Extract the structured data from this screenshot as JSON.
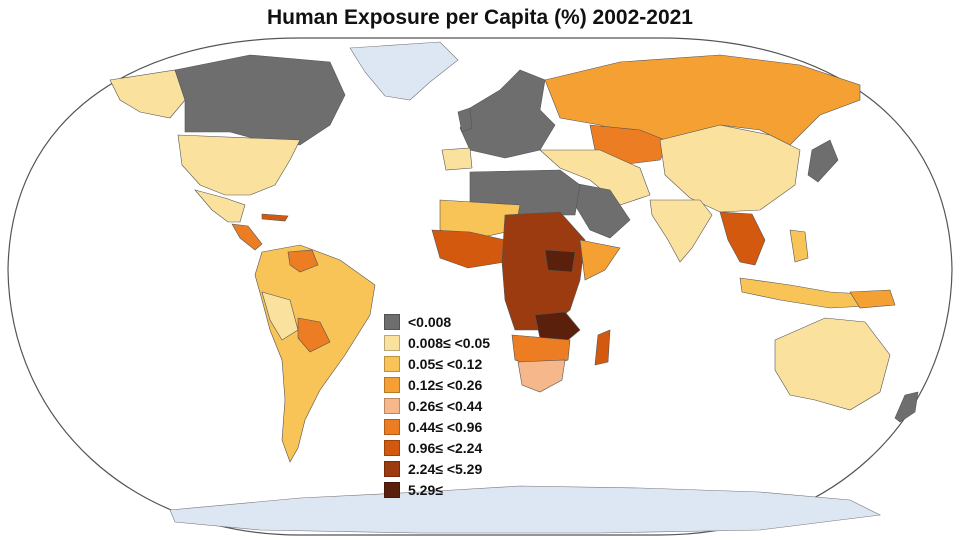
{
  "title": "Human Exposure per Capita (%) 2002-2021",
  "colors": {
    "ocean": "#ffffff",
    "ice": "#dde6f3",
    "outline": "#555555"
  },
  "legend": [
    {
      "label": "<0.008",
      "color": "#6e6e6e"
    },
    {
      "label": "0.008≤ <0.05",
      "color": "#fbe19e"
    },
    {
      "label": "0.05≤ <0.12",
      "color": "#f8c357"
    },
    {
      "label": "0.12≤ <0.26",
      "color": "#f5a032"
    },
    {
      "label": "0.26≤ <0.44",
      "color": "#f6b88a"
    },
    {
      "label": "0.44≤ <0.96",
      "color": "#ec7d22"
    },
    {
      "label": "0.96≤ <2.24",
      "color": "#d3590e"
    },
    {
      "label": "2.24≤ <5.29",
      "color": "#9c3a10"
    },
    {
      "label": "5.29≤",
      "color": "#5b200b"
    }
  ]
}
